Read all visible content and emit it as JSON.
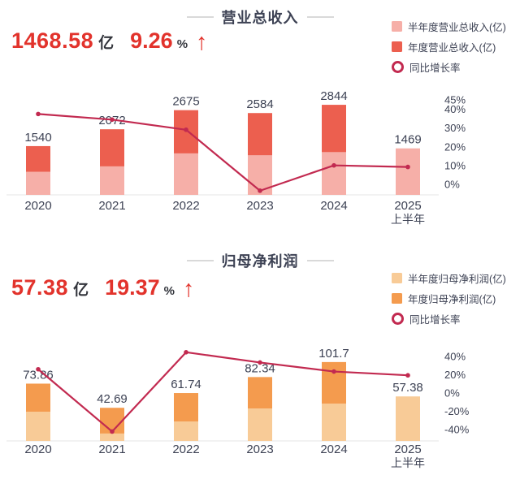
{
  "page": {
    "background": "#ffffff"
  },
  "colors": {
    "accent_red": "#e2332c",
    "line_crimson": "#c22a50",
    "text_dark": "#3d4254",
    "axis_line": "#e4e4e4",
    "dash_gray": "#d9d9d9"
  },
  "chart_data": [
    {
      "type": "stacked-bar+line",
      "title": "营业总收入",
      "stat": {
        "value": "1468.58",
        "unit": "亿",
        "growth": "9.26",
        "growth_unit": "%",
        "arrow": "↑"
      },
      "legend": [
        "半年度营业总收入(亿)",
        "年度营业总收入(亿)",
        "同比增长率"
      ],
      "categories": [
        "2020",
        "2021",
        "2022",
        "2023",
        "2024",
        "2025"
      ],
      "category_sub": [
        "",
        "",
        "",
        "",
        "",
        "上半年"
      ],
      "annual_values": [
        1540,
        2072,
        2675,
        2584,
        2844,
        1469
      ],
      "half_values": [
        730,
        900,
        1310,
        1250,
        1350,
        1469
      ],
      "value_labels": [
        "1540",
        "2072",
        "2675",
        "2584",
        "2844",
        "1469"
      ],
      "growth_pct": [
        37.5,
        34.5,
        29.1,
        -3.4,
        10.1,
        9.26
      ],
      "y2_ticks": [
        45,
        40,
        30,
        20,
        10,
        0
      ],
      "y2_tick_labels": [
        "45%",
        "40%",
        "30%",
        "20%",
        "10%",
        "0%"
      ],
      "bar_colors": {
        "half": "#f6afa8",
        "annual": "#ec5f4f"
      },
      "line_color": "#c22a50",
      "legend_position": "top-right",
      "grid": false
    },
    {
      "type": "stacked-bar+line",
      "title": "归母净利润",
      "stat": {
        "value": "57.38",
        "unit": "亿",
        "growth": "19.37",
        "growth_unit": "%",
        "arrow": "↑"
      },
      "legend": [
        "半年度归母净利润(亿)",
        "年度归母净利润(亿)",
        "同比增长率"
      ],
      "categories": [
        "2020",
        "2021",
        "2022",
        "2023",
        "2024",
        "2025"
      ],
      "category_sub": [
        "",
        "",
        "",
        "",
        "",
        "上半年"
      ],
      "annual_values": [
        73.86,
        42.69,
        61.74,
        82.34,
        101.7,
        57.38
      ],
      "half_values": [
        37.6,
        9.5,
        25.1,
        41.8,
        48.1,
        57.38
      ],
      "value_labels": [
        "73.86",
        "42.69",
        "61.74",
        "82.34",
        "101.7",
        "57.38"
      ],
      "growth_pct": [
        26,
        -42.2,
        44.6,
        33.4,
        23.5,
        19.37
      ],
      "y2_ticks": [
        40,
        20,
        0,
        -20,
        -40
      ],
      "y2_tick_labels": [
        "40%",
        "20%",
        "0%",
        "-20%",
        "-40%"
      ],
      "bar_colors": {
        "half": "#f8cb97",
        "annual": "#f49b4e"
      },
      "line_color": "#c22a50",
      "legend_position": "top-right",
      "grid": false
    }
  ]
}
